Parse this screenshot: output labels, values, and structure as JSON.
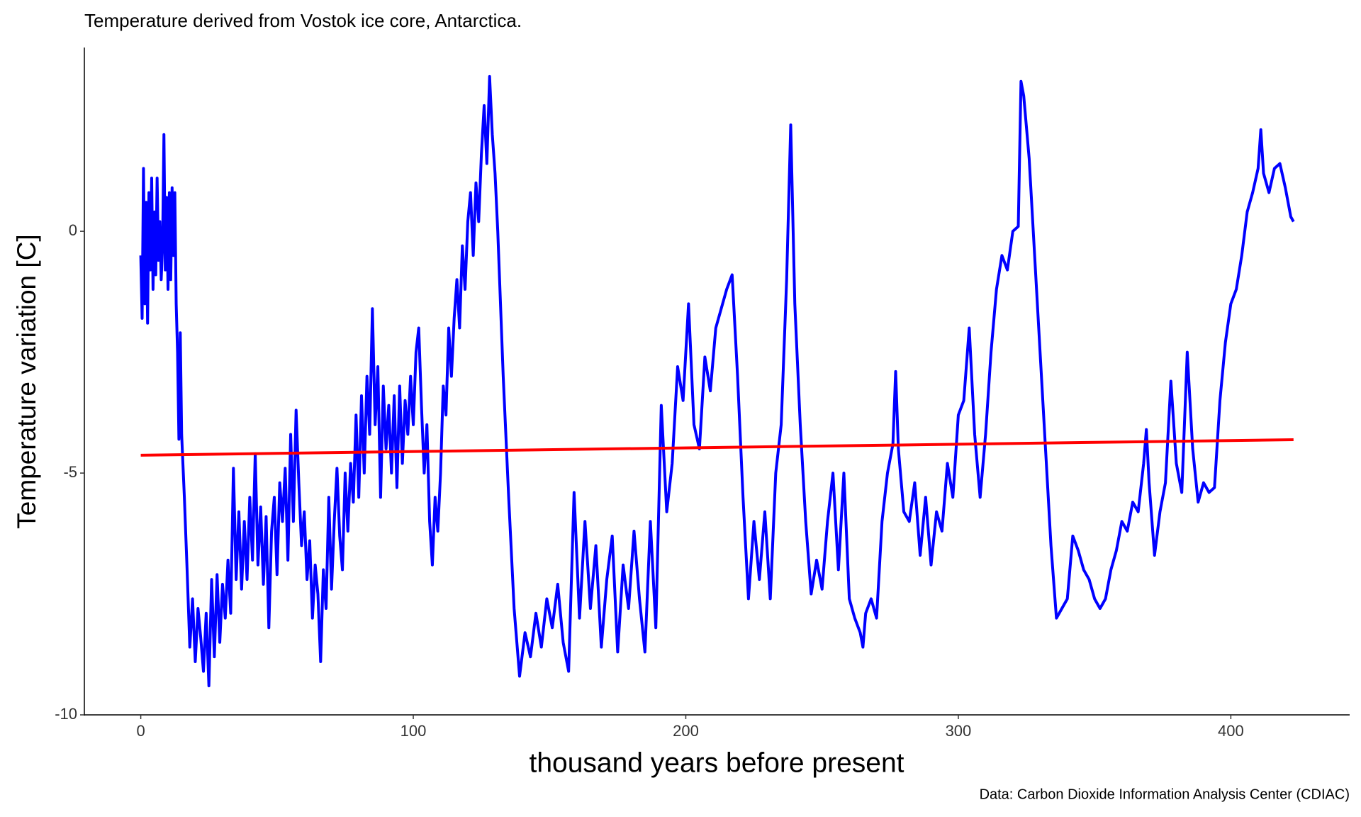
{
  "chart_data": {
    "type": "line",
    "title": "Temperature derived from Vostok ice core, Antarctica.",
    "x_label": "thousand years before present",
    "y_label": "Temperature variation [C]",
    "caption": "Data: Carbon Dioxide Information Analysis Center (CDIAC)",
    "xlim": [
      -20.7,
      443.6
    ],
    "xticks": [
      0,
      100,
      200,
      300,
      400
    ],
    "ylim": [
      -10,
      3.8
    ],
    "yticks": [
      -10,
      -5,
      0
    ],
    "grid": false,
    "series": [
      {
        "color": "#0000ff",
        "x": [
          0,
          0.5,
          1,
          1.5,
          2,
          2.5,
          3,
          3.5,
          4,
          4.5,
          5,
          5.5,
          6,
          6.5,
          7,
          7.5,
          8,
          8.5,
          9,
          9.5,
          10,
          10.5,
          11,
          11.5,
          12,
          12.5,
          13,
          13.5,
          14,
          14.5,
          15,
          16,
          17,
          18,
          19,
          20,
          21,
          22,
          23,
          24,
          25,
          26,
          27,
          28,
          29,
          30,
          31,
          32,
          33,
          34,
          35,
          36,
          37,
          38,
          39,
          40,
          41,
          42,
          43,
          44,
          45,
          46,
          47,
          48,
          49,
          50,
          51,
          52,
          53,
          54,
          55,
          56,
          57,
          58,
          59,
          60,
          61,
          62,
          63,
          64,
          65,
          66,
          67,
          68,
          69,
          70,
          71,
          72,
          73,
          74,
          75,
          76,
          77,
          78,
          79,
          80,
          81,
          82,
          83,
          84,
          85,
          86,
          87,
          88,
          89,
          90,
          91,
          92,
          93,
          94,
          95,
          96,
          97,
          98,
          99,
          100,
          101,
          102,
          103,
          104,
          105,
          106,
          107,
          108,
          109,
          110,
          111,
          112,
          113,
          114,
          115,
          116,
          117,
          118,
          119,
          120,
          121,
          122,
          123,
          124,
          125,
          126,
          127,
          128,
          129,
          130,
          131,
          133,
          135,
          137,
          139,
          141,
          143,
          145,
          147,
          149,
          151,
          153,
          155,
          157,
          159,
          161,
          163,
          165,
          167,
          169,
          171,
          173,
          175,
          177,
          179,
          181,
          183,
          185,
          187,
          189,
          191,
          193,
          195,
          197,
          199,
          201,
          203,
          205,
          207,
          209,
          211,
          213,
          215,
          217,
          219,
          221,
          223,
          225,
          227,
          229,
          231,
          233,
          235,
          237,
          238.5,
          240,
          242,
          244,
          246,
          248,
          250,
          252,
          254,
          256,
          258,
          260,
          262,
          264,
          265,
          266,
          268,
          270,
          272,
          274,
          276,
          277,
          278,
          280,
          282,
          284,
          286,
          288,
          290,
          292,
          294,
          296,
          298,
          300,
          302,
          304,
          306,
          308,
          310,
          312,
          314,
          316,
          318,
          320,
          322,
          323,
          324,
          326,
          328,
          330,
          332,
          334,
          336,
          338,
          340,
          342,
          344,
          346,
          348,
          350,
          352,
          354,
          356,
          358,
          360,
          362,
          364,
          366,
          368,
          369,
          370,
          372,
          374,
          376,
          378,
          380,
          382,
          384,
          386,
          388,
          390,
          392,
          394,
          396,
          398,
          400,
          402,
          404,
          406,
          408,
          410,
          411,
          412,
          414,
          416,
          418,
          420,
          422,
          423
        ],
        "values": [
          -0.5,
          -1.8,
          1.3,
          -1.5,
          0.6,
          -1.9,
          0.8,
          -0.8,
          1.1,
          -1.2,
          0.4,
          -0.9,
          1.1,
          -0.6,
          0.2,
          -1.0,
          -0.3,
          2.0,
          -0.8,
          0.7,
          -1.2,
          0.8,
          -1.0,
          0.9,
          -0.5,
          0.8,
          -1.5,
          -2.5,
          -4.3,
          -2.1,
          -4.2,
          -5.5,
          -7.0,
          -8.6,
          -7.6,
          -8.9,
          -7.8,
          -8.4,
          -9.1,
          -7.9,
          -9.4,
          -7.2,
          -8.8,
          -7.1,
          -8.5,
          -7.3,
          -8.0,
          -6.8,
          -7.9,
          -4.9,
          -7.2,
          -5.8,
          -7.4,
          -6.0,
          -7.2,
          -5.5,
          -6.8,
          -4.6,
          -6.9,
          -5.7,
          -7.3,
          -5.9,
          -8.2,
          -6.2,
          -5.5,
          -7.1,
          -5.2,
          -6.0,
          -4.9,
          -6.8,
          -4.2,
          -6.0,
          -3.7,
          -5.2,
          -6.5,
          -5.8,
          -7.2,
          -6.4,
          -8.0,
          -6.9,
          -7.5,
          -8.9,
          -7.0,
          -7.8,
          -5.5,
          -7.4,
          -6.0,
          -4.9,
          -6.3,
          -7.0,
          -5.0,
          -6.2,
          -4.8,
          -5.6,
          -3.8,
          -5.5,
          -3.4,
          -5.0,
          -3.0,
          -4.2,
          -1.6,
          -4.0,
          -2.8,
          -5.5,
          -3.2,
          -4.5,
          -3.6,
          -5.0,
          -3.4,
          -5.3,
          -3.2,
          -4.8,
          -3.5,
          -4.2,
          -3.0,
          -4.0,
          -2.5,
          -2.0,
          -3.6,
          -5.0,
          -4.0,
          -6.0,
          -6.9,
          -5.5,
          -6.2,
          -5.0,
          -3.2,
          -3.8,
          -2.0,
          -3.0,
          -1.8,
          -1.0,
          -2.0,
          -0.3,
          -1.2,
          0.2,
          0.8,
          -0.5,
          1.0,
          0.2,
          1.6,
          2.6,
          1.4,
          3.2,
          2.0,
          1.2,
          0.0,
          -3.0,
          -5.5,
          -7.8,
          -9.2,
          -8.3,
          -8.8,
          -7.9,
          -8.6,
          -7.6,
          -8.2,
          -7.3,
          -8.5,
          -9.1,
          -5.4,
          -8.0,
          -6.0,
          -7.8,
          -6.5,
          -8.6,
          -7.2,
          -6.3,
          -8.7,
          -6.9,
          -7.8,
          -6.2,
          -7.6,
          -8.7,
          -6.0,
          -8.2,
          -3.6,
          -5.8,
          -4.8,
          -2.8,
          -3.5,
          -1.5,
          -4.0,
          -4.5,
          -2.6,
          -3.3,
          -2.0,
          -1.6,
          -1.2,
          -0.9,
          -3.0,
          -5.5,
          -7.6,
          -6.0,
          -7.2,
          -5.8,
          -7.6,
          -5.0,
          -4.0,
          -1.0,
          2.2,
          -1.5,
          -4.0,
          -6.0,
          -7.5,
          -6.8,
          -7.4,
          -6.0,
          -5.0,
          -7.0,
          -5.0,
          -7.6,
          -8.0,
          -8.3,
          -8.6,
          -7.9,
          -7.6,
          -8.0,
          -6.0,
          -5.0,
          -4.4,
          -2.9,
          -4.5,
          -5.8,
          -6.0,
          -5.2,
          -6.7,
          -5.5,
          -6.9,
          -5.8,
          -6.2,
          -4.8,
          -5.5,
          -3.8,
          -3.5,
          -2.0,
          -4.2,
          -5.5,
          -4.2,
          -2.5,
          -1.2,
          -0.5,
          -0.8,
          0.0,
          0.1,
          3.1,
          2.8,
          1.5,
          -0.5,
          -2.5,
          -4.5,
          -6.5,
          -8.0,
          -7.8,
          -7.6,
          -6.3,
          -6.6,
          -7.0,
          -7.2,
          -7.6,
          -7.8,
          -7.6,
          -7.0,
          -6.6,
          -6.0,
          -6.2,
          -5.6,
          -5.8,
          -4.8,
          -4.1,
          -5.2,
          -6.7,
          -5.8,
          -5.2,
          -3.1,
          -4.8,
          -5.4,
          -2.5,
          -4.5,
          -5.6,
          -5.2,
          -5.4,
          -5.3,
          -3.5,
          -2.3,
          -1.5,
          -1.2,
          -0.5,
          0.4,
          0.8,
          1.3,
          2.1,
          1.2,
          0.8,
          1.3,
          1.4,
          0.9,
          0.3,
          0.2
        ]
      },
      {
        "color": "#ff0000",
        "x": [
          0,
          423
        ],
        "values": [
          -4.63,
          -4.31
        ]
      }
    ]
  }
}
